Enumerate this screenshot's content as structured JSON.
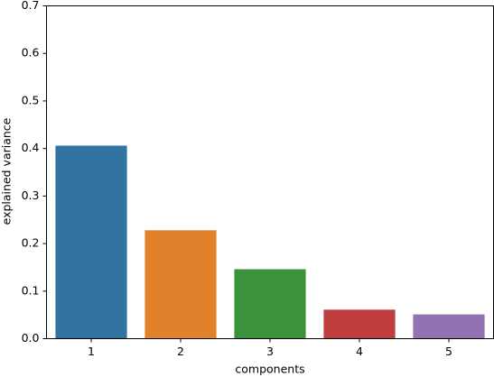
{
  "chart_data": {
    "type": "bar",
    "categories": [
      "1",
      "2",
      "3",
      "4",
      "5"
    ],
    "values": [
      0.406,
      0.228,
      0.146,
      0.061,
      0.051
    ],
    "colors": [
      "#3274a1",
      "#e1812c",
      "#3a923a",
      "#c03d3e",
      "#9372b2"
    ],
    "xlabel": "components",
    "ylabel": "explained variance",
    "ylim": [
      0,
      0.7
    ],
    "yticks": [
      {
        "value": 0,
        "label": "0.0"
      },
      0.1,
      0.2,
      0.3,
      0.4,
      0.5,
      0.6,
      0.7
    ]
  }
}
